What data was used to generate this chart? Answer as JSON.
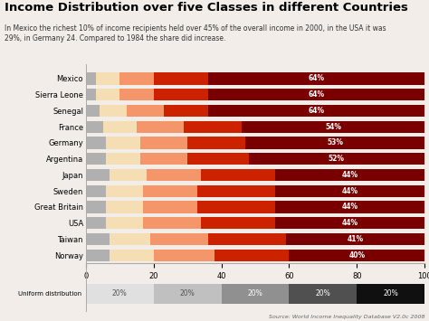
{
  "title": "Income Distribution over five Classes in different Countries",
  "subtitle": "In Mexico the richest 10% of income recipients held over 45% of the overall income in 2000, in the USA it was\n29%, in Germany 24. Compared to 1984 the share did increase.",
  "source": "Source: World Income Inequality Database V2.0c 2008",
  "countries": [
    "Mexico",
    "Sierra Leone",
    "Senegal",
    "France",
    "Germany",
    "Argentina",
    "Japan",
    "Sweden",
    "Great Britain",
    "USA",
    "Taiwan",
    "Norway"
  ],
  "quintile_data": [
    [
      3,
      7,
      10,
      16,
      64
    ],
    [
      3,
      7,
      10,
      16,
      64
    ],
    [
      4,
      8,
      11,
      13,
      64
    ],
    [
      5,
      10,
      14,
      17,
      54
    ],
    [
      6,
      10,
      14,
      17,
      53
    ],
    [
      6,
      10,
      14,
      18,
      52
    ],
    [
      7,
      11,
      16,
      22,
      44
    ],
    [
      6,
      11,
      16,
      23,
      44
    ],
    [
      6,
      11,
      16,
      23,
      44
    ],
    [
      6,
      11,
      17,
      22,
      44
    ],
    [
      7,
      12,
      17,
      23,
      41
    ],
    [
      7,
      13,
      18,
      22,
      40
    ]
  ],
  "top_labels": [
    "64%",
    "64%",
    "64%",
    "54%",
    "53%",
    "52%",
    "44%",
    "44%",
    "44%",
    "44%",
    "41%",
    "40%"
  ],
  "quintile_colors": [
    "#b0b0b0",
    "#f5deb3",
    "#f4956a",
    "#cc2200",
    "#7a0000"
  ],
  "uniform_colors": [
    "#e0e0e0",
    "#c0c0c0",
    "#909090",
    "#505050",
    "#101010"
  ],
  "uniform_values": [
    20,
    20,
    20,
    20,
    20
  ],
  "uniform_label": "Uniform distribution",
  "xlim": [
    0,
    100
  ],
  "xticks": [
    0,
    20,
    40,
    60,
    80,
    100
  ],
  "bar_height": 0.75,
  "fig_bg": "#f2ede8",
  "title_fontsize": 9.5,
  "subtitle_fontsize": 5.5,
  "axis_fontsize": 6,
  "label_fontsize": 5.5,
  "source_fontsize": 4.5
}
